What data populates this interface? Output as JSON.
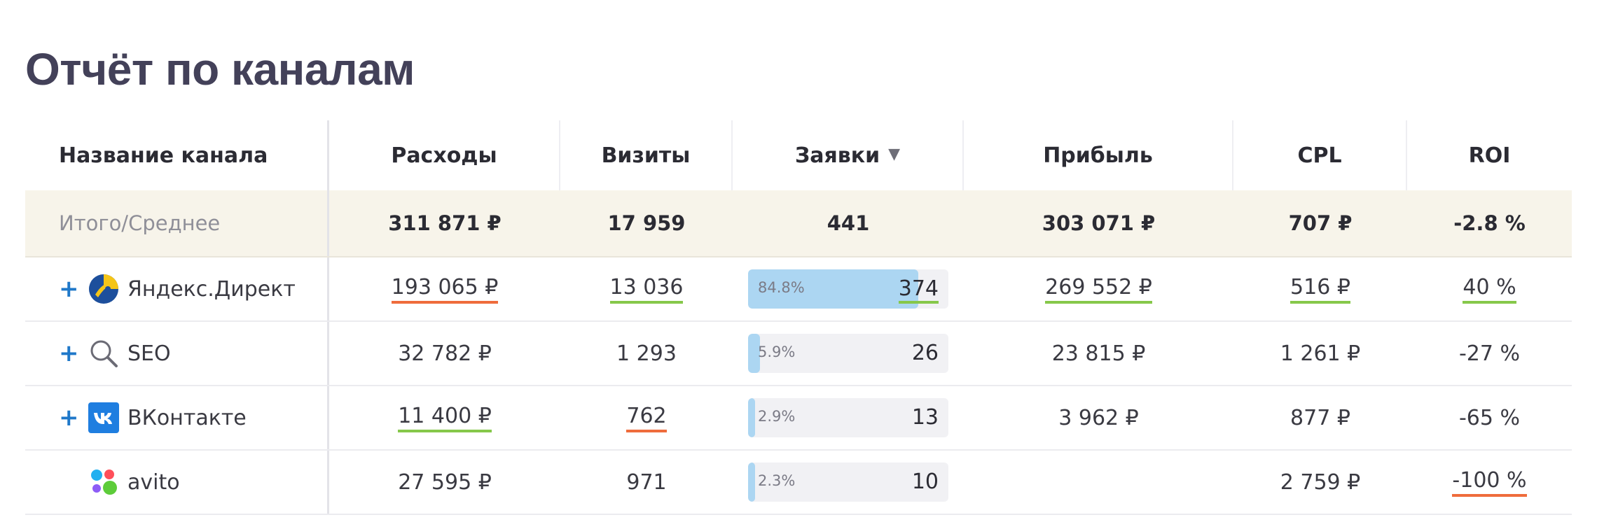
{
  "page": {
    "title": "Отчёт по каналам"
  },
  "table": {
    "headers": {
      "name": "Название канала",
      "cost": "Расходы",
      "visits": "Визиты",
      "leads": "Заявки",
      "profit": "Прибыль",
      "cpl": "CPL",
      "roi": "ROI"
    },
    "sort": {
      "column": "leads",
      "direction": "desc",
      "icon": "triangle-down-icon"
    },
    "total": {
      "name": "Итого/Среднее",
      "cost": "311 871 ₽",
      "visits": "17 959",
      "leads": "441",
      "profit": "303 071 ₽",
      "cpl": "707 ₽",
      "roi": "-2.8 %"
    },
    "rows": [
      {
        "expand": "+",
        "icon": "yandex-direct-icon",
        "name": "Яндекс.Директ",
        "cost": "193 065 ₽",
        "cost_mark": "orange",
        "visits": "13 036",
        "visits_mark": "green",
        "leads": "374",
        "leads_mark": "green",
        "leads_pct": "84.8%",
        "leads_share": 0.848,
        "profit": "269 552 ₽",
        "profit_mark": "green",
        "cpl": "516 ₽",
        "cpl_mark": "green",
        "roi": "40 %",
        "roi_mark": "green"
      },
      {
        "expand": "+",
        "icon": "search-icon",
        "name": "SEO",
        "cost": "32 782 ₽",
        "cost_mark": "",
        "visits": "1 293",
        "visits_mark": "",
        "leads": "26",
        "leads_mark": "",
        "leads_pct": "5.9%",
        "leads_share": 0.059,
        "profit": "23 815 ₽",
        "profit_mark": "",
        "cpl": "1 261 ₽",
        "cpl_mark": "",
        "roi": "-27 %",
        "roi_mark": ""
      },
      {
        "expand": "+",
        "icon": "vk-icon",
        "name": "ВКонтакте",
        "cost": "11 400 ₽",
        "cost_mark": "green",
        "visits": "762",
        "visits_mark": "orange",
        "leads": "13",
        "leads_mark": "",
        "leads_pct": "2.9%",
        "leads_share": 0.029,
        "profit": "3 962 ₽",
        "profit_mark": "",
        "cpl": "877 ₽",
        "cpl_mark": "",
        "roi": "-65 %",
        "roi_mark": ""
      },
      {
        "expand": "",
        "icon": "avito-icon",
        "name": "avito",
        "cost": "27 595 ₽",
        "cost_mark": "",
        "visits": "971",
        "visits_mark": "",
        "leads": "10",
        "leads_mark": "",
        "leads_pct": "2.3%",
        "leads_share": 0.023,
        "profit": "",
        "profit_mark": "",
        "cpl": "2 759 ₽",
        "cpl_mark": "",
        "roi": "-100 %",
        "roi_mark": "orange"
      }
    ],
    "colors": {
      "title": "#434159",
      "total_bg": "#f7f4ea",
      "bar_fill": "#acd6f2",
      "bar_track": "#f1f1f4",
      "mark_green": "#86c84a",
      "mark_orange": "#ef6c3c",
      "plus": "#1f78c9"
    }
  }
}
